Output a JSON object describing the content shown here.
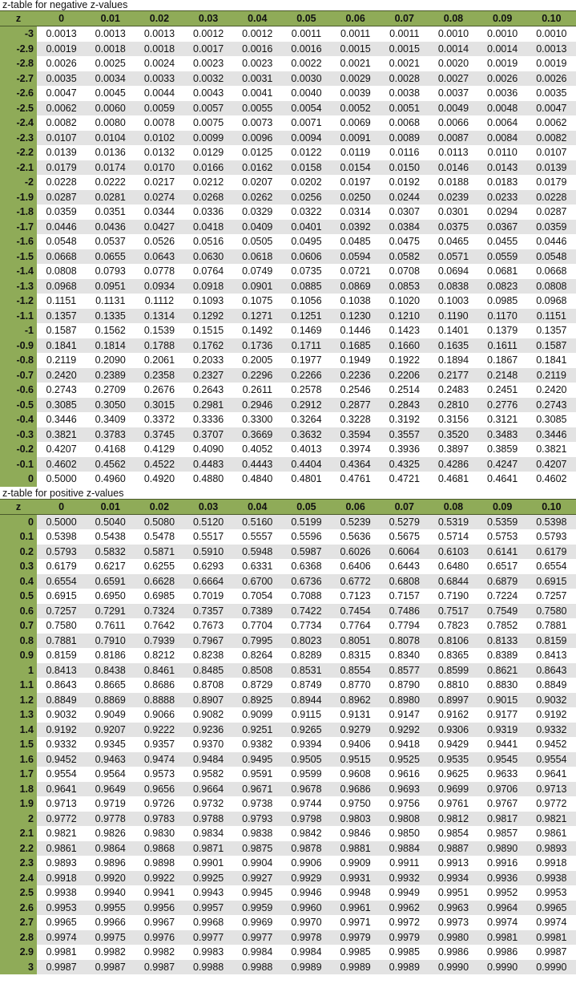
{
  "colors": {
    "header_green": "#8fab58",
    "stripe_gray": "#e3e3e3"
  },
  "negative": {
    "title": "z-table for negative z-values",
    "columns": [
      "z",
      "0",
      "0.01",
      "0.02",
      "0.03",
      "0.04",
      "0.05",
      "0.06",
      "0.07",
      "0.08",
      "0.09",
      "0.10"
    ],
    "rows": [
      [
        "-3",
        "0.0013",
        "0.0013",
        "0.0013",
        "0.0012",
        "0.0012",
        "0.0011",
        "0.0011",
        "0.0011",
        "0.0010",
        "0.0010",
        "0.0010"
      ],
      [
        "-2.9",
        "0.0019",
        "0.0018",
        "0.0018",
        "0.0017",
        "0.0016",
        "0.0016",
        "0.0015",
        "0.0015",
        "0.0014",
        "0.0014",
        "0.0013"
      ],
      [
        "-2.8",
        "0.0026",
        "0.0025",
        "0.0024",
        "0.0023",
        "0.0023",
        "0.0022",
        "0.0021",
        "0.0021",
        "0.0020",
        "0.0019",
        "0.0019"
      ],
      [
        "-2.7",
        "0.0035",
        "0.0034",
        "0.0033",
        "0.0032",
        "0.0031",
        "0.0030",
        "0.0029",
        "0.0028",
        "0.0027",
        "0.0026",
        "0.0026"
      ],
      [
        "-2.6",
        "0.0047",
        "0.0045",
        "0.0044",
        "0.0043",
        "0.0041",
        "0.0040",
        "0.0039",
        "0.0038",
        "0.0037",
        "0.0036",
        "0.0035"
      ],
      [
        "-2.5",
        "0.0062",
        "0.0060",
        "0.0059",
        "0.0057",
        "0.0055",
        "0.0054",
        "0.0052",
        "0.0051",
        "0.0049",
        "0.0048",
        "0.0047"
      ],
      [
        "-2.4",
        "0.0082",
        "0.0080",
        "0.0078",
        "0.0075",
        "0.0073",
        "0.0071",
        "0.0069",
        "0.0068",
        "0.0066",
        "0.0064",
        "0.0062"
      ],
      [
        "-2.3",
        "0.0107",
        "0.0104",
        "0.0102",
        "0.0099",
        "0.0096",
        "0.0094",
        "0.0091",
        "0.0089",
        "0.0087",
        "0.0084",
        "0.0082"
      ],
      [
        "-2.2",
        "0.0139",
        "0.0136",
        "0.0132",
        "0.0129",
        "0.0125",
        "0.0122",
        "0.0119",
        "0.0116",
        "0.0113",
        "0.0110",
        "0.0107"
      ],
      [
        "-2.1",
        "0.0179",
        "0.0174",
        "0.0170",
        "0.0166",
        "0.0162",
        "0.0158",
        "0.0154",
        "0.0150",
        "0.0146",
        "0.0143",
        "0.0139"
      ],
      [
        "-2",
        "0.0228",
        "0.0222",
        "0.0217",
        "0.0212",
        "0.0207",
        "0.0202",
        "0.0197",
        "0.0192",
        "0.0188",
        "0.0183",
        "0.0179"
      ],
      [
        "-1.9",
        "0.0287",
        "0.0281",
        "0.0274",
        "0.0268",
        "0.0262",
        "0.0256",
        "0.0250",
        "0.0244",
        "0.0239",
        "0.0233",
        "0.0228"
      ],
      [
        "-1.8",
        "0.0359",
        "0.0351",
        "0.0344",
        "0.0336",
        "0.0329",
        "0.0322",
        "0.0314",
        "0.0307",
        "0.0301",
        "0.0294",
        "0.0287"
      ],
      [
        "-1.7",
        "0.0446",
        "0.0436",
        "0.0427",
        "0.0418",
        "0.0409",
        "0.0401",
        "0.0392",
        "0.0384",
        "0.0375",
        "0.0367",
        "0.0359"
      ],
      [
        "-1.6",
        "0.0548",
        "0.0537",
        "0.0526",
        "0.0516",
        "0.0505",
        "0.0495",
        "0.0485",
        "0.0475",
        "0.0465",
        "0.0455",
        "0.0446"
      ],
      [
        "-1.5",
        "0.0668",
        "0.0655",
        "0.0643",
        "0.0630",
        "0.0618",
        "0.0606",
        "0.0594",
        "0.0582",
        "0.0571",
        "0.0559",
        "0.0548"
      ],
      [
        "-1.4",
        "0.0808",
        "0.0793",
        "0.0778",
        "0.0764",
        "0.0749",
        "0.0735",
        "0.0721",
        "0.0708",
        "0.0694",
        "0.0681",
        "0.0668"
      ],
      [
        "-1.3",
        "0.0968",
        "0.0951",
        "0.0934",
        "0.0918",
        "0.0901",
        "0.0885",
        "0.0869",
        "0.0853",
        "0.0838",
        "0.0823",
        "0.0808"
      ],
      [
        "-1.2",
        "0.1151",
        "0.1131",
        "0.1112",
        "0.1093",
        "0.1075",
        "0.1056",
        "0.1038",
        "0.1020",
        "0.1003",
        "0.0985",
        "0.0968"
      ],
      [
        "-1.1",
        "0.1357",
        "0.1335",
        "0.1314",
        "0.1292",
        "0.1271",
        "0.1251",
        "0.1230",
        "0.1210",
        "0.1190",
        "0.1170",
        "0.1151"
      ],
      [
        "-1",
        "0.1587",
        "0.1562",
        "0.1539",
        "0.1515",
        "0.1492",
        "0.1469",
        "0.1446",
        "0.1423",
        "0.1401",
        "0.1379",
        "0.1357"
      ],
      [
        "-0.9",
        "0.1841",
        "0.1814",
        "0.1788",
        "0.1762",
        "0.1736",
        "0.1711",
        "0.1685",
        "0.1660",
        "0.1635",
        "0.1611",
        "0.1587"
      ],
      [
        "-0.8",
        "0.2119",
        "0.2090",
        "0.2061",
        "0.2033",
        "0.2005",
        "0.1977",
        "0.1949",
        "0.1922",
        "0.1894",
        "0.1867",
        "0.1841"
      ],
      [
        "-0.7",
        "0.2420",
        "0.2389",
        "0.2358",
        "0.2327",
        "0.2296",
        "0.2266",
        "0.2236",
        "0.2206",
        "0.2177",
        "0.2148",
        "0.2119"
      ],
      [
        "-0.6",
        "0.2743",
        "0.2709",
        "0.2676",
        "0.2643",
        "0.2611",
        "0.2578",
        "0.2546",
        "0.2514",
        "0.2483",
        "0.2451",
        "0.2420"
      ],
      [
        "-0.5",
        "0.3085",
        "0.3050",
        "0.3015",
        "0.2981",
        "0.2946",
        "0.2912",
        "0.2877",
        "0.2843",
        "0.2810",
        "0.2776",
        "0.2743"
      ],
      [
        "-0.4",
        "0.3446",
        "0.3409",
        "0.3372",
        "0.3336",
        "0.3300",
        "0.3264",
        "0.3228",
        "0.3192",
        "0.3156",
        "0.3121",
        "0.3085"
      ],
      [
        "-0.3",
        "0.3821",
        "0.3783",
        "0.3745",
        "0.3707",
        "0.3669",
        "0.3632",
        "0.3594",
        "0.3557",
        "0.3520",
        "0.3483",
        "0.3446"
      ],
      [
        "-0.2",
        "0.4207",
        "0.4168",
        "0.4129",
        "0.4090",
        "0.4052",
        "0.4013",
        "0.3974",
        "0.3936",
        "0.3897",
        "0.3859",
        "0.3821"
      ],
      [
        "-0.1",
        "0.4602",
        "0.4562",
        "0.4522",
        "0.4483",
        "0.4443",
        "0.4404",
        "0.4364",
        "0.4325",
        "0.4286",
        "0.4247",
        "0.4207"
      ],
      [
        "0",
        "0.5000",
        "0.4960",
        "0.4920",
        "0.4880",
        "0.4840",
        "0.4801",
        "0.4761",
        "0.4721",
        "0.4681",
        "0.4641",
        "0.4602"
      ]
    ]
  },
  "positive": {
    "title": "z-table for positive z-values",
    "columns": [
      "z",
      "0",
      "0.01",
      "0.02",
      "0.03",
      "0.04",
      "0.05",
      "0.06",
      "0.07",
      "0.08",
      "0.09",
      "0.10"
    ],
    "rows": [
      [
        "0",
        "0.5000",
        "0.5040",
        "0.5080",
        "0.5120",
        "0.5160",
        "0.5199",
        "0.5239",
        "0.5279",
        "0.5319",
        "0.5359",
        "0.5398"
      ],
      [
        "0.1",
        "0.5398",
        "0.5438",
        "0.5478",
        "0.5517",
        "0.5557",
        "0.5596",
        "0.5636",
        "0.5675",
        "0.5714",
        "0.5753",
        "0.5793"
      ],
      [
        "0.2",
        "0.5793",
        "0.5832",
        "0.5871",
        "0.5910",
        "0.5948",
        "0.5987",
        "0.6026",
        "0.6064",
        "0.6103",
        "0.6141",
        "0.6179"
      ],
      [
        "0.3",
        "0.6179",
        "0.6217",
        "0.6255",
        "0.6293",
        "0.6331",
        "0.6368",
        "0.6406",
        "0.6443",
        "0.6480",
        "0.6517",
        "0.6554"
      ],
      [
        "0.4",
        "0.6554",
        "0.6591",
        "0.6628",
        "0.6664",
        "0.6700",
        "0.6736",
        "0.6772",
        "0.6808",
        "0.6844",
        "0.6879",
        "0.6915"
      ],
      [
        "0.5",
        "0.6915",
        "0.6950",
        "0.6985",
        "0.7019",
        "0.7054",
        "0.7088",
        "0.7123",
        "0.7157",
        "0.7190",
        "0.7224",
        "0.7257"
      ],
      [
        "0.6",
        "0.7257",
        "0.7291",
        "0.7324",
        "0.7357",
        "0.7389",
        "0.7422",
        "0.7454",
        "0.7486",
        "0.7517",
        "0.7549",
        "0.7580"
      ],
      [
        "0.7",
        "0.7580",
        "0.7611",
        "0.7642",
        "0.7673",
        "0.7704",
        "0.7734",
        "0.7764",
        "0.7794",
        "0.7823",
        "0.7852",
        "0.7881"
      ],
      [
        "0.8",
        "0.7881",
        "0.7910",
        "0.7939",
        "0.7967",
        "0.7995",
        "0.8023",
        "0.8051",
        "0.8078",
        "0.8106",
        "0.8133",
        "0.8159"
      ],
      [
        "0.9",
        "0.8159",
        "0.8186",
        "0.8212",
        "0.8238",
        "0.8264",
        "0.8289",
        "0.8315",
        "0.8340",
        "0.8365",
        "0.8389",
        "0.8413"
      ],
      [
        "1",
        "0.8413",
        "0.8438",
        "0.8461",
        "0.8485",
        "0.8508",
        "0.8531",
        "0.8554",
        "0.8577",
        "0.8599",
        "0.8621",
        "0.8643"
      ],
      [
        "1.1",
        "0.8643",
        "0.8665",
        "0.8686",
        "0.8708",
        "0.8729",
        "0.8749",
        "0.8770",
        "0.8790",
        "0.8810",
        "0.8830",
        "0.8849"
      ],
      [
        "1.2",
        "0.8849",
        "0.8869",
        "0.8888",
        "0.8907",
        "0.8925",
        "0.8944",
        "0.8962",
        "0.8980",
        "0.8997",
        "0.9015",
        "0.9032"
      ],
      [
        "1.3",
        "0.9032",
        "0.9049",
        "0.9066",
        "0.9082",
        "0.9099",
        "0.9115",
        "0.9131",
        "0.9147",
        "0.9162",
        "0.9177",
        "0.9192"
      ],
      [
        "1.4",
        "0.9192",
        "0.9207",
        "0.9222",
        "0.9236",
        "0.9251",
        "0.9265",
        "0.9279",
        "0.9292",
        "0.9306",
        "0.9319",
        "0.9332"
      ],
      [
        "1.5",
        "0.9332",
        "0.9345",
        "0.9357",
        "0.9370",
        "0.9382",
        "0.9394",
        "0.9406",
        "0.9418",
        "0.9429",
        "0.9441",
        "0.9452"
      ],
      [
        "1.6",
        "0.9452",
        "0.9463",
        "0.9474",
        "0.9484",
        "0.9495",
        "0.9505",
        "0.9515",
        "0.9525",
        "0.9535",
        "0.9545",
        "0.9554"
      ],
      [
        "1.7",
        "0.9554",
        "0.9564",
        "0.9573",
        "0.9582",
        "0.9591",
        "0.9599",
        "0.9608",
        "0.9616",
        "0.9625",
        "0.9633",
        "0.9641"
      ],
      [
        "1.8",
        "0.9641",
        "0.9649",
        "0.9656",
        "0.9664",
        "0.9671",
        "0.9678",
        "0.9686",
        "0.9693",
        "0.9699",
        "0.9706",
        "0.9713"
      ],
      [
        "1.9",
        "0.9713",
        "0.9719",
        "0.9726",
        "0.9732",
        "0.9738",
        "0.9744",
        "0.9750",
        "0.9756",
        "0.9761",
        "0.9767",
        "0.9772"
      ],
      [
        "2",
        "0.9772",
        "0.9778",
        "0.9783",
        "0.9788",
        "0.9793",
        "0.9798",
        "0.9803",
        "0.9808",
        "0.9812",
        "0.9817",
        "0.9821"
      ],
      [
        "2.1",
        "0.9821",
        "0.9826",
        "0.9830",
        "0.9834",
        "0.9838",
        "0.9842",
        "0.9846",
        "0.9850",
        "0.9854",
        "0.9857",
        "0.9861"
      ],
      [
        "2.2",
        "0.9861",
        "0.9864",
        "0.9868",
        "0.9871",
        "0.9875",
        "0.9878",
        "0.9881",
        "0.9884",
        "0.9887",
        "0.9890",
        "0.9893"
      ],
      [
        "2.3",
        "0.9893",
        "0.9896",
        "0.9898",
        "0.9901",
        "0.9904",
        "0.9906",
        "0.9909",
        "0.9911",
        "0.9913",
        "0.9916",
        "0.9918"
      ],
      [
        "2.4",
        "0.9918",
        "0.9920",
        "0.9922",
        "0.9925",
        "0.9927",
        "0.9929",
        "0.9931",
        "0.9932",
        "0.9934",
        "0.9936",
        "0.9938"
      ],
      [
        "2.5",
        "0.9938",
        "0.9940",
        "0.9941",
        "0.9943",
        "0.9945",
        "0.9946",
        "0.9948",
        "0.9949",
        "0.9951",
        "0.9952",
        "0.9953"
      ],
      [
        "2.6",
        "0.9953",
        "0.9955",
        "0.9956",
        "0.9957",
        "0.9959",
        "0.9960",
        "0.9961",
        "0.9962",
        "0.9963",
        "0.9964",
        "0.9965"
      ],
      [
        "2.7",
        "0.9965",
        "0.9966",
        "0.9967",
        "0.9968",
        "0.9969",
        "0.9970",
        "0.9971",
        "0.9972",
        "0.9973",
        "0.9974",
        "0.9974"
      ],
      [
        "2.8",
        "0.9974",
        "0.9975",
        "0.9976",
        "0.9977",
        "0.9977",
        "0.9978",
        "0.9979",
        "0.9979",
        "0.9980",
        "0.9981",
        "0.9981"
      ],
      [
        "2.9",
        "0.9981",
        "0.9982",
        "0.9982",
        "0.9983",
        "0.9984",
        "0.9984",
        "0.9985",
        "0.9985",
        "0.9986",
        "0.9986",
        "0.9987"
      ],
      [
        "3",
        "0.9987",
        "0.9987",
        "0.9987",
        "0.9988",
        "0.9988",
        "0.9989",
        "0.9989",
        "0.9989",
        "0.9990",
        "0.9990",
        "0.9990"
      ]
    ]
  }
}
